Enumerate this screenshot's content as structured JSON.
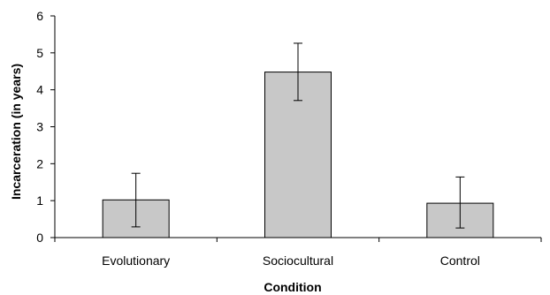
{
  "chart_data": {
    "type": "bar",
    "title": "",
    "xlabel": "Condition",
    "ylabel": "Incarceration (in years)",
    "categories": [
      "Evolutionary",
      "Sociocultural",
      "Control"
    ],
    "values": [
      1.02,
      4.48,
      0.93
    ],
    "error_bars": [
      {
        "low": 0.29,
        "high": 1.74
      },
      {
        "low": 3.71,
        "high": 5.26
      },
      {
        "low": 0.26,
        "high": 1.64
      }
    ],
    "ylim": [
      0,
      6
    ],
    "yticks": [
      "0",
      "1",
      "2",
      "3",
      "4",
      "5",
      "6"
    ],
    "grid": false,
    "legend": "none",
    "bar_color": "#c8c8c8",
    "bar_edge_color": "#000000"
  }
}
